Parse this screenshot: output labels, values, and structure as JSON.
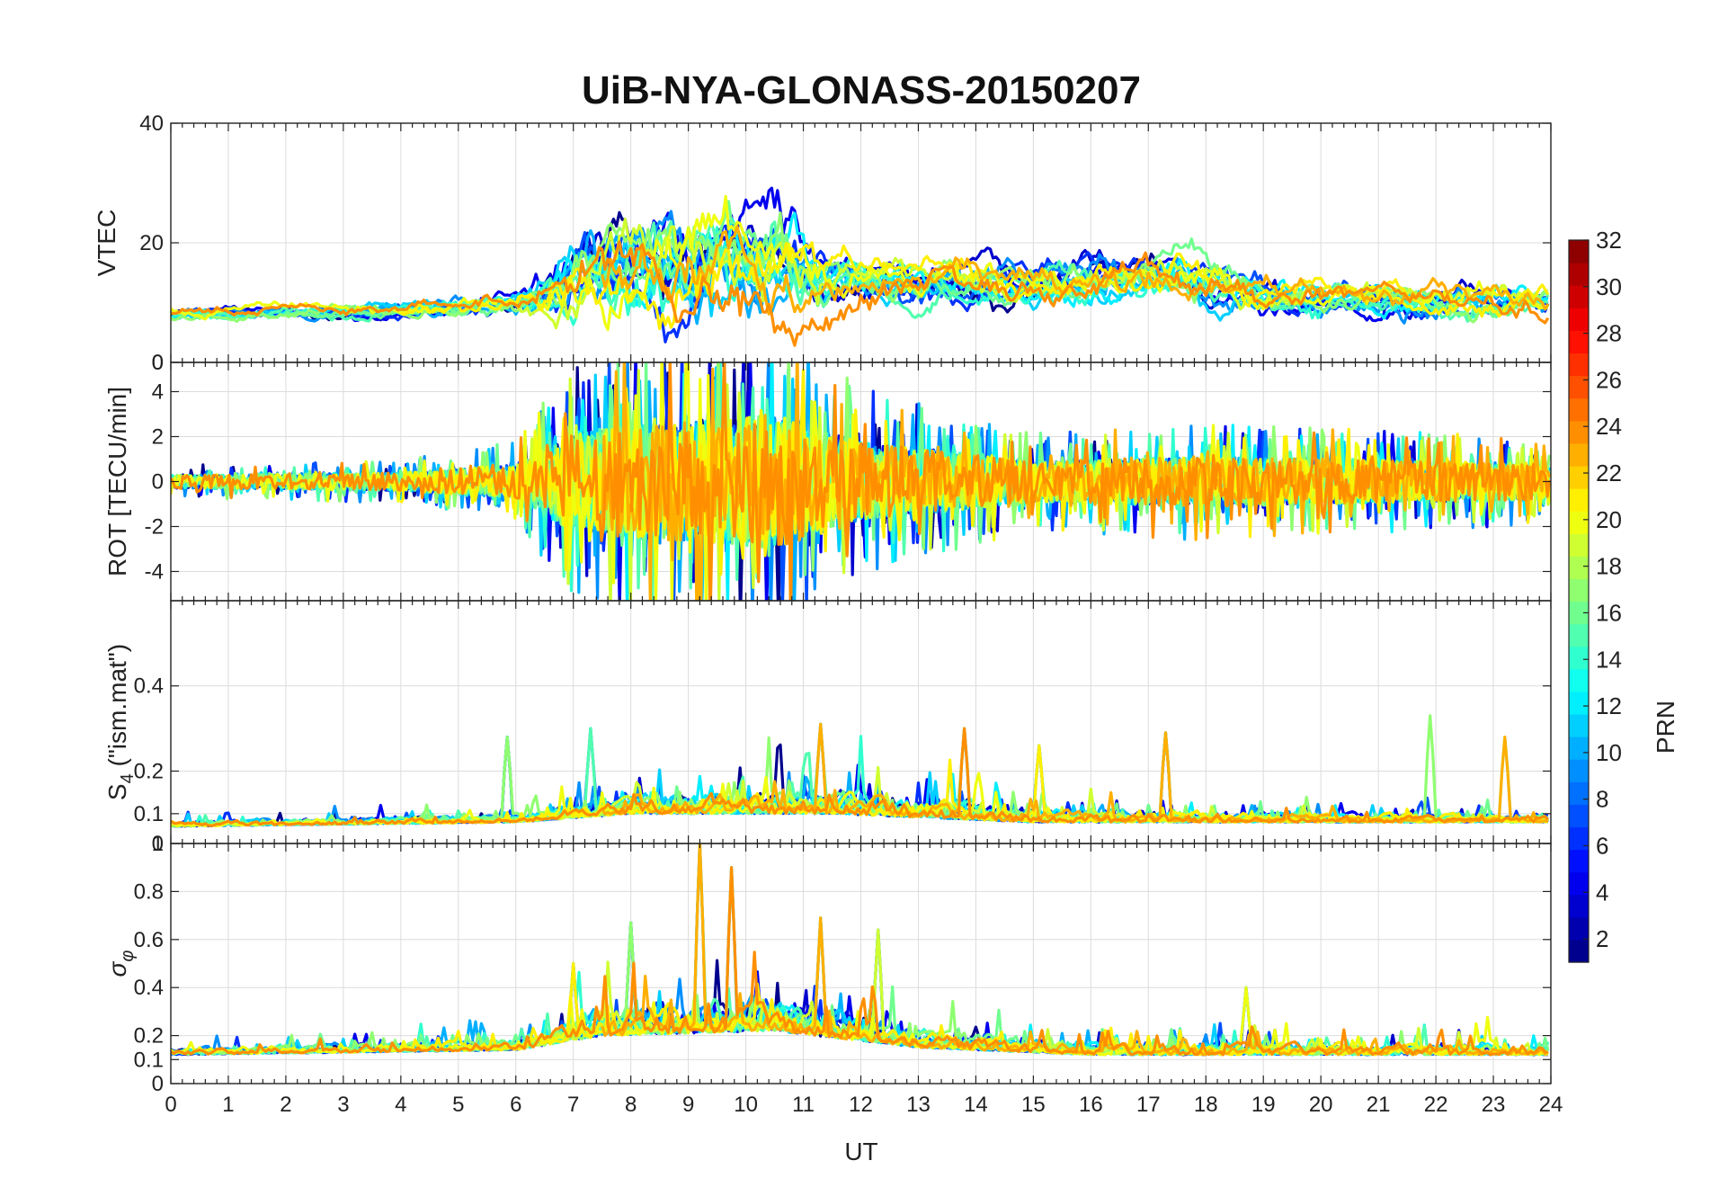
{
  "chart_data": {
    "type": "line",
    "title": "UiB-NYA-GLONASS-20150207",
    "xlabel": "UT",
    "xlim": [
      0,
      24
    ],
    "x_ticks": [
      0,
      1,
      2,
      3,
      4,
      5,
      6,
      7,
      8,
      9,
      10,
      11,
      12,
      13,
      14,
      15,
      16,
      17,
      18,
      19,
      20,
      21,
      22,
      23,
      24
    ],
    "panels": [
      {
        "id": "vtec",
        "ylabel": "VTEC",
        "ylim": [
          0,
          40
        ],
        "y_ticks": [
          0,
          20,
          40
        ],
        "y_tick_labels": [
          "0",
          "20",
          "40"
        ],
        "description_profile": [
          {
            "ut": 0,
            "base": 8,
            "amp": 1.5
          },
          {
            "ut": 4,
            "base": 9,
            "amp": 2
          },
          {
            "ut": 6,
            "base": 10,
            "amp": 2.5
          },
          {
            "ut": 7.2,
            "base": 14,
            "amp": 10
          },
          {
            "ut": 8.5,
            "base": 17,
            "amp": 12
          },
          {
            "ut": 10.5,
            "base": 16,
            "amp": 12
          },
          {
            "ut": 11.5,
            "base": 14,
            "amp": 6
          },
          {
            "ut": 13,
            "base": 13,
            "amp": 5
          },
          {
            "ut": 15,
            "base": 13,
            "amp": 5
          },
          {
            "ut": 17.5,
            "base": 15,
            "amp": 6
          },
          {
            "ut": 19,
            "base": 11,
            "amp": 4
          },
          {
            "ut": 24,
            "base": 10,
            "amp": 4
          }
        ]
      },
      {
        "id": "rot",
        "ylabel": "ROT [TECU/min]",
        "ylim": [
          -5.3,
          5.3
        ],
        "y_ticks": [
          -4,
          -2,
          0,
          2,
          4
        ],
        "y_tick_labels": [
          "-4",
          "-2",
          "0",
          "2",
          "4"
        ],
        "top_label": "0",
        "description_profile": [
          {
            "ut": 0,
            "amp": 0.6
          },
          {
            "ut": 4,
            "amp": 0.8
          },
          {
            "ut": 6,
            "amp": 1.5
          },
          {
            "ut": 7,
            "amp": 4.5
          },
          {
            "ut": 10.5,
            "amp": 6
          },
          {
            "ut": 12,
            "amp": 3.5
          },
          {
            "ut": 15,
            "amp": 1.8
          },
          {
            "ut": 18,
            "amp": 2.2
          },
          {
            "ut": 24,
            "amp": 1.6
          }
        ]
      },
      {
        "id": "s4",
        "ylabel": "S4 (\"ism.mat\")",
        "ylabel_main": "S",
        "ylabel_sub": "4",
        "ylabel_rest": " (\"ism.mat\")",
        "ylim": [
          0.03,
          0.6
        ],
        "y_ticks": [
          0.1,
          0.2,
          0.4
        ],
        "y_tick_labels": [
          "0.1",
          "0.2",
          "0.4"
        ],
        "description_profile": [
          {
            "ut": 0,
            "base": 0.07,
            "amp": 0.03
          },
          {
            "ut": 6,
            "base": 0.08,
            "amp": 0.04
          },
          {
            "ut": 8,
            "base": 0.1,
            "amp": 0.1
          },
          {
            "ut": 11.5,
            "base": 0.1,
            "amp": 0.12
          },
          {
            "ut": 15,
            "base": 0.08,
            "amp": 0.08
          },
          {
            "ut": 19,
            "base": 0.08,
            "amp": 0.05
          },
          {
            "ut": 24,
            "base": 0.08,
            "amp": 0.04
          }
        ],
        "peaks": [
          {
            "ut": 5.85,
            "value": 0.28
          },
          {
            "ut": 7.3,
            "value": 0.3
          },
          {
            "ut": 11.3,
            "value": 0.31
          },
          {
            "ut": 13.8,
            "value": 0.3
          },
          {
            "ut": 15.1,
            "value": 0.26
          },
          {
            "ut": 17.3,
            "value": 0.29
          },
          {
            "ut": 21.9,
            "value": 0.33
          },
          {
            "ut": 23.2,
            "value": 0.28
          }
        ]
      },
      {
        "id": "sigma",
        "ylabel": "σφ",
        "ylabel_main": "σ",
        "ylabel_sub": "φ",
        "ylim": [
          0,
          1
        ],
        "y_ticks": [
          0,
          0.1,
          0.2,
          0.4,
          0.6,
          0.8,
          1
        ],
        "y_tick_labels": [
          "0",
          "0.1",
          "0.2",
          "0.4",
          "0.6",
          "0.8",
          "1"
        ],
        "top_label": "0",
        "description_profile": [
          {
            "ut": 0,
            "base": 0.12,
            "amp": 0.06
          },
          {
            "ut": 6,
            "base": 0.14,
            "amp": 0.1
          },
          {
            "ut": 7.5,
            "base": 0.2,
            "amp": 0.25
          },
          {
            "ut": 10.5,
            "base": 0.22,
            "amp": 0.3
          },
          {
            "ut": 13,
            "base": 0.15,
            "amp": 0.15
          },
          {
            "ut": 16,
            "base": 0.12,
            "amp": 0.12
          },
          {
            "ut": 24,
            "base": 0.12,
            "amp": 0.1
          }
        ],
        "peaks": [
          {
            "ut": 7.0,
            "value": 0.5
          },
          {
            "ut": 8.0,
            "value": 0.67
          },
          {
            "ut": 9.2,
            "value": 1.0
          },
          {
            "ut": 9.75,
            "value": 0.9
          },
          {
            "ut": 11.3,
            "value": 0.69
          },
          {
            "ut": 12.3,
            "value": 0.64
          },
          {
            "ut": 18.7,
            "value": 0.4
          }
        ]
      }
    ],
    "colorbar": {
      "label": "PRN",
      "colormap": "jet",
      "range": [
        1,
        32
      ],
      "ticks": [
        2,
        4,
        6,
        8,
        10,
        12,
        14,
        16,
        18,
        20,
        22,
        24,
        26,
        28,
        30,
        32
      ],
      "tick_labels": [
        "2",
        "4",
        "6",
        "8",
        "10",
        "12",
        "14",
        "16",
        "18",
        "20",
        "22",
        "24",
        "26",
        "28",
        "30",
        "32"
      ]
    },
    "series": [
      {
        "name": "PRN 1",
        "prn": 1,
        "start": 0.0,
        "end": 17.2
      },
      {
        "name": "PRN 3",
        "prn": 3,
        "start": 6.5,
        "end": 24.0
      },
      {
        "name": "PRN 4",
        "prn": 4,
        "start": 0.0,
        "end": 24.0
      },
      {
        "name": "PRN 6",
        "prn": 6,
        "start": 0.0,
        "end": 24.0
      },
      {
        "name": "PRN 7",
        "prn": 7,
        "start": 1.5,
        "end": 22.0
      },
      {
        "name": "PRN 9",
        "prn": 9,
        "start": 0.0,
        "end": 24.0
      },
      {
        "name": "PRN 10",
        "prn": 10,
        "start": 3.0,
        "end": 20.0
      },
      {
        "name": "PRN 11",
        "prn": 11,
        "start": 0.0,
        "end": 24.0
      },
      {
        "name": "PRN 12",
        "prn": 12,
        "start": 5.8,
        "end": 24.0
      },
      {
        "name": "PRN 14",
        "prn": 14,
        "start": 0.0,
        "end": 24.0
      },
      {
        "name": "PRN 15",
        "prn": 15,
        "start": 0.5,
        "end": 24.0
      },
      {
        "name": "PRN 16",
        "prn": 16,
        "start": 2.0,
        "end": 24.0
      },
      {
        "name": "PRN 17",
        "prn": 17,
        "start": 0.0,
        "end": 24.0
      },
      {
        "name": "PRN 19",
        "prn": 19,
        "start": 6.0,
        "end": 24.0
      },
      {
        "name": "PRN 20",
        "prn": 20,
        "start": 0.0,
        "end": 24.0
      },
      {
        "name": "PRN 21",
        "prn": 21,
        "start": 4.0,
        "end": 24.0
      },
      {
        "name": "PRN 23",
        "prn": 23,
        "start": 7.5,
        "end": 24.0
      },
      {
        "name": "PRN 24",
        "prn": 24,
        "start": 0.0,
        "end": 24.0
      }
    ]
  }
}
